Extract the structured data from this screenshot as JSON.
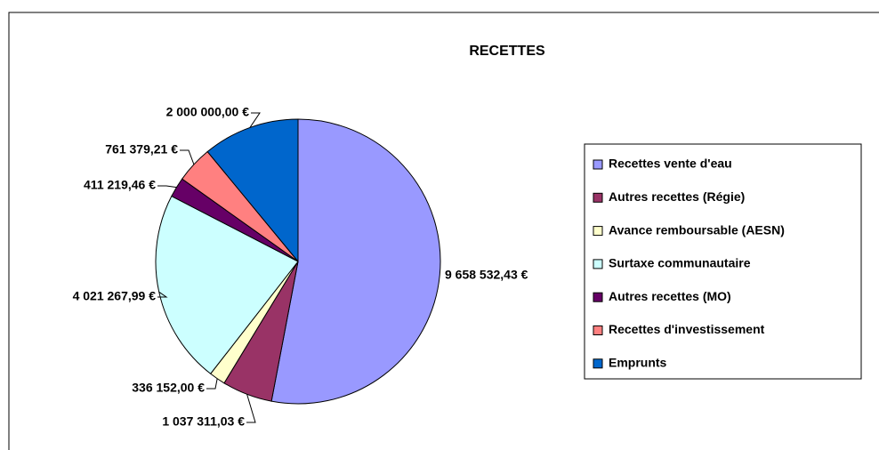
{
  "chart_data": {
    "type": "pie",
    "title": "RECETTES",
    "categories": [
      "Recettes vente d'eau",
      "Autres recettes (Régie)",
      "Avance remboursable (AESN)",
      "Surtaxe communautaire",
      "Autres recettes (MO)",
      "Recettes d'investissement",
      "Emprunts"
    ],
    "values": [
      9658532.43,
      1037311.03,
      336152.0,
      4021267.99,
      411219.46,
      761379.21,
      2000000.0
    ],
    "value_labels": [
      "9 658 532,43 €",
      "1 037 311,03 €",
      "336 152,00 €",
      "4 021 267,99 €",
      "411 219,46 €",
      "761 379,21 €",
      "2 000 000,00 €"
    ],
    "colors": [
      "#9999ff",
      "#993366",
      "#ffffcc",
      "#ccffff",
      "#660066",
      "#ff8080",
      "#0066cc"
    ],
    "legend": "right"
  }
}
